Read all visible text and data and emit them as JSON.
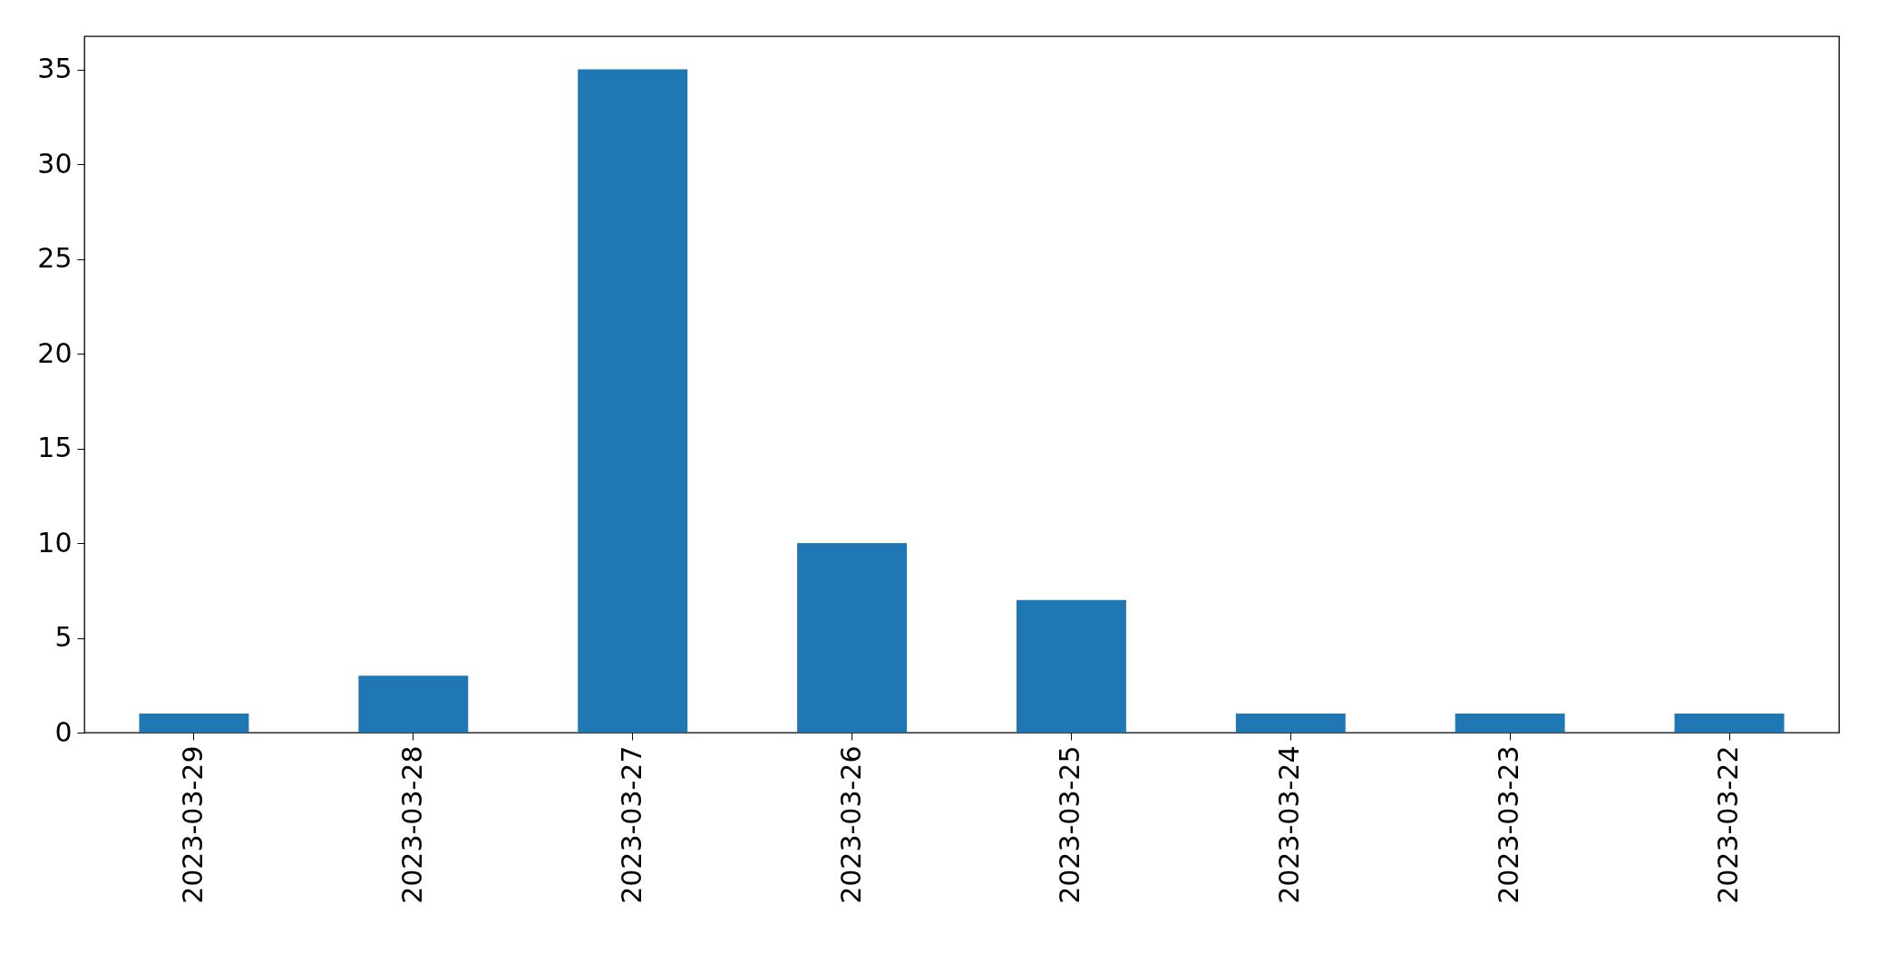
{
  "chart_data": {
    "type": "bar",
    "categories": [
      "2023-03-29",
      "2023-03-28",
      "2023-03-27",
      "2023-03-26",
      "2023-03-25",
      "2023-03-24",
      "2023-03-23",
      "2023-03-22"
    ],
    "values": [
      1,
      3,
      35,
      10,
      7,
      1,
      1,
      1
    ],
    "color": "#1f77b4",
    "ylim": [
      0,
      36.75
    ],
    "yticks": [
      0,
      5,
      10,
      15,
      20,
      25,
      30,
      35
    ],
    "grid": false
  }
}
